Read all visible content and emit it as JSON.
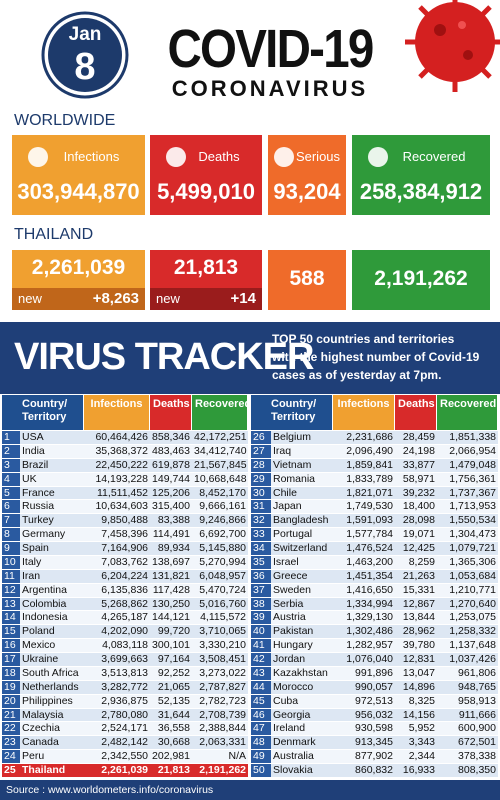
{
  "header": {
    "month": "Jan",
    "day": "8",
    "title": "COVID-19",
    "subtitle": "CORONAVIRUS"
  },
  "worldwide": {
    "label": "WORLDWIDE",
    "cards": [
      {
        "label": "Infections",
        "value": "303,944,870"
      },
      {
        "label": "Deaths",
        "value": "5,499,010"
      },
      {
        "label": "Serious",
        "value": "93,204"
      },
      {
        "label": "Recovered",
        "value": "258,384,912"
      }
    ]
  },
  "thailand": {
    "label": "THAILAND",
    "cards": [
      {
        "value": "2,261,039",
        "new_label": "new",
        "new_value": "+8,263"
      },
      {
        "value": "21,813",
        "new_label": "new",
        "new_value": "+14"
      },
      {
        "value": "588"
      },
      {
        "value": "2,191,262"
      }
    ]
  },
  "tracker": {
    "title": "VIRUS TRACKER",
    "description": [
      "TOP 50 countries and territories",
      "with the highest number of Covid-19",
      "cases as of yesterday at 7pm."
    ]
  },
  "table": {
    "headers": [
      "Country/ Territory",
      "Infections",
      "Deaths",
      "Recovered"
    ],
    "rows": [
      [
        "1",
        "USA",
        "60,464,426",
        "858,346",
        "42,172,251"
      ],
      [
        "2",
        "India",
        "35,368,372",
        "483,463",
        "34,412,740"
      ],
      [
        "3",
        "Brazil",
        "22,450,222",
        "619,878",
        "21,567,845"
      ],
      [
        "4",
        "UK",
        "14,193,228",
        "149,744",
        "10,668,648"
      ],
      [
        "5",
        "France",
        "11,511,452",
        "125,206",
        "8,452,170"
      ],
      [
        "6",
        "Russia",
        "10,634,603",
        "315,400",
        "9,666,161"
      ],
      [
        "7",
        "Turkey",
        "9,850,488",
        "83,388",
        "9,246,866"
      ],
      [
        "8",
        "Germany",
        "7,458,396",
        "114,491",
        "6,692,700"
      ],
      [
        "9",
        "Spain",
        "7,164,906",
        "89,934",
        "5,145,880"
      ],
      [
        "10",
        "Italy",
        "7,083,762",
        "138,697",
        "5,270,994"
      ],
      [
        "11",
        "Iran",
        "6,204,224",
        "131,821",
        "6,048,957"
      ],
      [
        "12",
        "Argentina",
        "6,135,836",
        "117,428",
        "5,470,724"
      ],
      [
        "13",
        "Colombia",
        "5,268,862",
        "130,250",
        "5,016,760"
      ],
      [
        "14",
        "Indonesia",
        "4,265,187",
        "144,121",
        "4,115,572"
      ],
      [
        "15",
        "Poland",
        "4,202,090",
        "99,720",
        "3,710,065"
      ],
      [
        "16",
        "Mexico",
        "4,083,118",
        "300,101",
        "3,330,210"
      ],
      [
        "17",
        "Ukraine",
        "3,699,663",
        "97,164",
        "3,508,451"
      ],
      [
        "18",
        "South Africa",
        "3,513,813",
        "92,252",
        "3,273,022"
      ],
      [
        "19",
        "Netherlands",
        "3,282,772",
        "21,065",
        "2,787,827"
      ],
      [
        "20",
        "Philippines",
        "2,936,875",
        "52,135",
        "2,782,723"
      ],
      [
        "21",
        "Malaysia",
        "2,780,080",
        "31,644",
        "2,708,739"
      ],
      [
        "22",
        "Czechia",
        "2,524,171",
        "36,558",
        "2,388,844"
      ],
      [
        "23",
        "Canada",
        "2,482,142",
        "30,668",
        "2,063,331"
      ],
      [
        "24",
        "Peru",
        "2,342,550",
        "202,981",
        "N/A"
      ],
      [
        "25",
        "Thailand",
        "2,261,039",
        "21,813",
        "2,191,262"
      ],
      [
        "26",
        "Belgium",
        "2,231,686",
        "28,459",
        "1,851,338"
      ],
      [
        "27",
        "Iraq",
        "2,096,490",
        "24,198",
        "2,066,954"
      ],
      [
        "28",
        "Vietnam",
        "1,859,841",
        "33,877",
        "1,479,048"
      ],
      [
        "29",
        "Romania",
        "1,833,789",
        "58,971",
        "1,756,361"
      ],
      [
        "30",
        "Chile",
        "1,821,071",
        "39,232",
        "1,737,367"
      ],
      [
        "31",
        "Japan",
        "1,749,530",
        "18,400",
        "1,713,953"
      ],
      [
        "32",
        "Bangladesh",
        "1,591,093",
        "28,098",
        "1,550,534"
      ],
      [
        "33",
        "Portugal",
        "1,577,784",
        "19,071",
        "1,304,473"
      ],
      [
        "34",
        "Switzerland",
        "1,476,524",
        "12,425",
        "1,079,721"
      ],
      [
        "35",
        "Israel",
        "1,463,200",
        "8,259",
        "1,365,306"
      ],
      [
        "36",
        "Greece",
        "1,451,354",
        "21,263",
        "1,053,684"
      ],
      [
        "37",
        "Sweden",
        "1,416,650",
        "15,331",
        "1,210,771"
      ],
      [
        "38",
        "Serbia",
        "1,334,994",
        "12,867",
        "1,270,640"
      ],
      [
        "39",
        "Austria",
        "1,329,130",
        "13,844",
        "1,253,075"
      ],
      [
        "40",
        "Pakistan",
        "1,302,486",
        "28,962",
        "1,258,332"
      ],
      [
        "41",
        "Hungary",
        "1,282,957",
        "39,780",
        "1,137,648"
      ],
      [
        "42",
        "Jordan",
        "1,076,040",
        "12,831",
        "1,037,426"
      ],
      [
        "43",
        "Kazakhstan",
        "991,896",
        "13,047",
        "961,806"
      ],
      [
        "44",
        "Morocco",
        "990,057",
        "14,896",
        "948,765"
      ],
      [
        "45",
        "Cuba",
        "972,513",
        "8,325",
        "958,913"
      ],
      [
        "46",
        "Georgia",
        "956,032",
        "14,156",
        "911,666"
      ],
      [
        "47",
        "Ireland",
        "930,598",
        "5,952",
        "600,900"
      ],
      [
        "48",
        "Denmark",
        "913,345",
        "3,343",
        "672,501"
      ],
      [
        "49",
        "Australia",
        "877,902",
        "2,344",
        "378,338"
      ],
      [
        "50",
        "Slovakia",
        "860,832",
        "16,933",
        "808,350"
      ]
    ]
  },
  "source": "Source : www.worldometers.info/coronavirus"
}
